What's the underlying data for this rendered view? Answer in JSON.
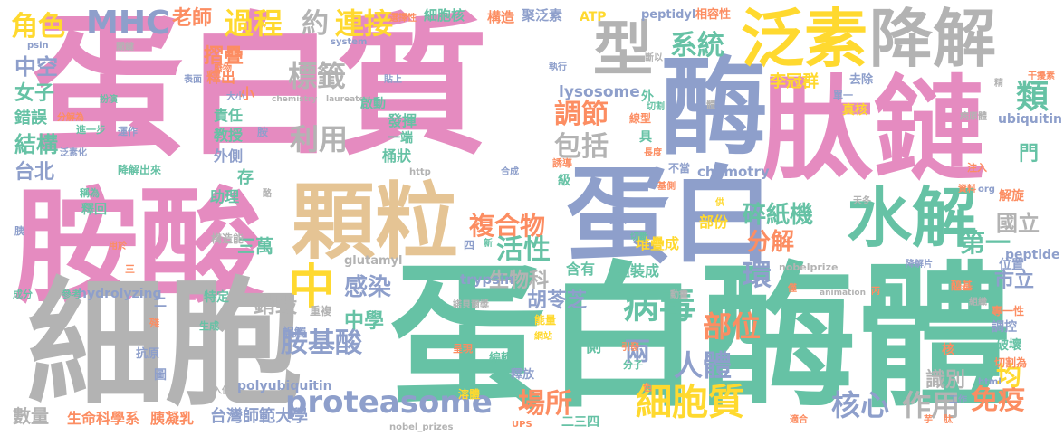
{
  "colors": {
    "pink": "#e58bc0",
    "blue": "#8e9fcb",
    "teal": "#66c2a5",
    "tan": "#e5c494",
    "yellow": "#ffd92f",
    "orange": "#fc8d62",
    "green": "#a6d854",
    "gray": "#b3b3b3"
  },
  "words": [
    {
      "text": "蛋白質",
      "color": "pink"
    },
    {
      "text": "蛋白酶體",
      "color": "teal"
    },
    {
      "text": "胺酸",
      "color": "pink"
    },
    {
      "text": "細胞",
      "color": "gray"
    },
    {
      "text": "肽鏈",
      "color": "pink"
    },
    {
      "text": "蛋白",
      "color": "blue"
    },
    {
      "text": "顆粒",
      "color": "tan"
    },
    {
      "text": "酶",
      "color": "blue"
    },
    {
      "text": "泛素",
      "color": "yellow"
    },
    {
      "text": "降解",
      "color": "gray"
    },
    {
      "text": "水解",
      "color": "teal"
    },
    {
      "text": "型",
      "color": "gray"
    },
    {
      "text": "MHC",
      "color": "blue"
    },
    {
      "text": "過程",
      "color": "yellow"
    },
    {
      "text": "連接",
      "color": "yellow"
    },
    {
      "text": "約",
      "color": "gray"
    },
    {
      "text": "系統",
      "color": "teal"
    },
    {
      "text": "老師",
      "color": "orange"
    },
    {
      "text": "角色",
      "color": "yellow"
    },
    {
      "text": "中空",
      "color": "blue"
    },
    {
      "text": "女子",
      "color": "teal"
    },
    {
      "text": "結構",
      "color": "teal"
    },
    {
      "text": "台北",
      "color": "blue"
    },
    {
      "text": "錯誤",
      "color": "teal"
    },
    {
      "text": "摺疊",
      "color": "orange"
    },
    {
      "text": "標籤",
      "color": "gray"
    },
    {
      "text": "利用",
      "color": "gray"
    },
    {
      "text": "調節",
      "color": "orange"
    },
    {
      "text": "包括",
      "color": "gray"
    },
    {
      "text": "複合物",
      "color": "orange"
    },
    {
      "text": "活性",
      "color": "teal"
    },
    {
      "text": "分解",
      "color": "orange"
    },
    {
      "text": "碎紙機",
      "color": "teal"
    },
    {
      "text": "第一",
      "color": "teal"
    },
    {
      "text": "國立",
      "color": "gray"
    },
    {
      "text": "市立",
      "color": "blue"
    },
    {
      "text": "中",
      "color": "yellow"
    },
    {
      "text": "感染",
      "color": "blue"
    },
    {
      "text": "胺基酸",
      "color": "blue"
    },
    {
      "text": "環",
      "color": "blue"
    },
    {
      "text": "病毒",
      "color": "teal"
    },
    {
      "text": "部位",
      "color": "orange"
    },
    {
      "text": "人體",
      "color": "blue"
    },
    {
      "text": "proteasome",
      "color": "blue"
    },
    {
      "text": "場所",
      "color": "orange"
    },
    {
      "text": "細胞質",
      "color": "yellow"
    },
    {
      "text": "核心",
      "color": "blue"
    },
    {
      "text": "作用",
      "color": "gray"
    },
    {
      "text": "免疫",
      "color": "orange"
    },
    {
      "text": "均",
      "color": "yellow"
    },
    {
      "text": "中學",
      "color": "teal"
    },
    {
      "text": "兩",
      "color": "blue"
    },
    {
      "text": "生物科",
      "color": "gray"
    },
    {
      "text": "胡苓芝",
      "color": "blue"
    },
    {
      "text": "銷毀",
      "color": "gray"
    },
    {
      "text": "三萬",
      "color": "teal"
    },
    {
      "text": "識別",
      "color": "gray"
    },
    {
      "text": "台灣師範大學",
      "color": "blue"
    },
    {
      "text": "生命科學系",
      "color": "orange"
    },
    {
      "text": "胰凝乳",
      "color": "orange"
    },
    {
      "text": "數量",
      "color": "gray"
    },
    {
      "text": "李冠群",
      "color": "yellow"
    },
    {
      "text": "lysosome",
      "color": "blue"
    },
    {
      "text": "ubiquitin",
      "color": "blue"
    },
    {
      "text": "chymotry",
      "color": "blue"
    },
    {
      "text": "trypsin",
      "color": "blue"
    },
    {
      "text": "polyubiquitin",
      "color": "blue"
    },
    {
      "text": "hydrolyzing",
      "color": "blue"
    },
    {
      "text": "glutamyl",
      "color": "gray"
    },
    {
      "text": "peptidyl",
      "color": "blue"
    },
    {
      "text": "peptide",
      "color": "blue"
    },
    {
      "text": "ATP",
      "color": "yellow"
    },
    {
      "text": "nobelprize",
      "color": "gray"
    },
    {
      "text": "nobel_prizes",
      "color": "gray"
    },
    {
      "text": "chemistry",
      "color": "gray"
    },
    {
      "text": "laureates",
      "color": "gray"
    },
    {
      "text": "system",
      "color": "blue"
    },
    {
      "text": "psin",
      "color": "blue"
    },
    {
      "text": "html",
      "color": "blue"
    },
    {
      "text": "http",
      "color": "gray"
    },
    {
      "text": "org",
      "color": "blue"
    },
    {
      "text": "animation",
      "color": "gray"
    },
    {
      "text": "UPS",
      "color": "orange"
    },
    {
      "text": "細胞核",
      "color": "teal"
    },
    {
      "text": "構造",
      "color": "orange"
    },
    {
      "text": "聚泛素",
      "color": "blue"
    },
    {
      "text": "相容性",
      "color": "orange"
    },
    {
      "text": "選擇性",
      "color": "orange"
    },
    {
      "text": "關鍵",
      "color": "gray"
    },
    {
      "text": "廢物",
      "color": "orange"
    },
    {
      "text": "釋出",
      "color": "orange"
    },
    {
      "text": "表面",
      "color": "blue"
    },
    {
      "text": "扮演",
      "color": "teal"
    },
    {
      "text": "小",
      "color": "orange"
    },
    {
      "text": "大小",
      "color": "blue"
    },
    {
      "text": "責任",
      "color": "teal"
    },
    {
      "text": "教授",
      "color": "teal"
    },
    {
      "text": "外側",
      "color": "blue"
    },
    {
      "text": "助理",
      "color": "teal"
    },
    {
      "text": "存",
      "color": "teal"
    },
    {
      "text": "進一步",
      "color": "teal"
    },
    {
      "text": "運作",
      "color": "blue"
    },
    {
      "text": "泛素化",
      "color": "blue"
    },
    {
      "text": "分解為",
      "color": "orange"
    },
    {
      "text": "降解出來",
      "color": "teal"
    },
    {
      "text": "稱為",
      "color": "teal"
    },
    {
      "text": "釋回",
      "color": "teal"
    },
    {
      "text": "胰",
      "color": "blue"
    },
    {
      "text": "用於",
      "color": "orange"
    },
    {
      "text": "成分",
      "color": "teal"
    },
    {
      "text": "參考",
      "color": "teal"
    },
    {
      "text": "二",
      "color": "blue"
    },
    {
      "text": "殘",
      "color": "orange"
    },
    {
      "text": "抗原",
      "color": "blue"
    },
    {
      "text": "圖",
      "color": "blue"
    },
    {
      "text": "入侵",
      "color": "gray"
    },
    {
      "text": "特定",
      "color": "teal"
    },
    {
      "text": "構造能",
      "color": "gray"
    },
    {
      "text": "生成",
      "color": "teal"
    },
    {
      "text": "誤觸",
      "color": "blue"
    },
    {
      "text": "重複",
      "color": "gray"
    },
    {
      "text": "編輯",
      "color": "teal"
    },
    {
      "text": "釋放",
      "color": "blue"
    },
    {
      "text": "呈現",
      "color": "orange"
    },
    {
      "text": "諾貝爾獎",
      "color": "gray"
    },
    {
      "text": "能量",
      "color": "yellow"
    },
    {
      "text": "網站",
      "color": "yellow"
    },
    {
      "text": "含有",
      "color": "teal"
    },
    {
      "text": "組裝成",
      "color": "teal"
    },
    {
      "text": "堆疊成",
      "color": "yellow"
    },
    {
      "text": "部份",
      "color": "yellow"
    },
    {
      "text": "天冬",
      "color": "gray"
    },
    {
      "text": "基側",
      "color": "orange"
    },
    {
      "text": "參與",
      "color": "blue"
    },
    {
      "text": "合成",
      "color": "blue"
    },
    {
      "text": "切斷",
      "color": "teal"
    },
    {
      "text": "引發",
      "color": "orange"
    },
    {
      "text": "分子",
      "color": "teal"
    },
    {
      "text": "工作",
      "color": "blue"
    },
    {
      "text": "適合",
      "color": "orange"
    },
    {
      "text": "降解片",
      "color": "blue"
    },
    {
      "text": "專一性",
      "color": "orange"
    },
    {
      "text": "調控",
      "color": "blue"
    },
    {
      "text": "破壞",
      "color": "teal"
    },
    {
      "text": "切割為",
      "color": "orange"
    },
    {
      "text": "醯基",
      "color": "orange"
    },
    {
      "text": "資料",
      "color": "orange"
    },
    {
      "text": "解旋",
      "color": "orange"
    },
    {
      "text": "位置",
      "color": "blue"
    },
    {
      "text": "注入",
      "color": "orange"
    },
    {
      "text": "病原體",
      "color": "gray"
    },
    {
      "text": "真核",
      "color": "yellow"
    },
    {
      "text": "單一",
      "color": "blue"
    },
    {
      "text": "去除",
      "color": "blue"
    },
    {
      "text": "斷以",
      "color": "gray"
    },
    {
      "text": "執行",
      "color": "blue"
    },
    {
      "text": "貼上",
      "color": "blue"
    },
    {
      "text": "啟動",
      "color": "teal"
    },
    {
      "text": "發揮",
      "color": "teal"
    },
    {
      "text": "一端",
      "color": "teal"
    },
    {
      "text": "桶狀",
      "color": "teal"
    },
    {
      "text": "切割",
      "color": "teal"
    },
    {
      "text": "線型",
      "color": "orange"
    },
    {
      "text": "誘導",
      "color": "orange"
    },
    {
      "text": "級",
      "color": "teal"
    },
    {
      "text": "不當",
      "color": "blue"
    },
    {
      "text": "長度",
      "color": "orange"
    },
    {
      "text": "外",
      "color": "teal"
    },
    {
      "text": "具",
      "color": "teal"
    },
    {
      "text": "類",
      "color": "teal"
    },
    {
      "text": "門",
      "color": "teal"
    },
    {
      "text": "新",
      "color": "teal"
    },
    {
      "text": "四",
      "color": "blue"
    },
    {
      "text": "側",
      "color": "teal"
    },
    {
      "text": "核",
      "color": "orange"
    },
    {
      "text": "肽",
      "color": "orange"
    },
    {
      "text": "二三四",
      "color": "teal"
    },
    {
      "text": "溶體",
      "color": "yellow"
    },
    {
      "text": "胺",
      "color": "blue"
    },
    {
      "text": "酪",
      "color": "gray"
    },
    {
      "text": "整",
      "color": "teal"
    },
    {
      "text": "供",
      "color": "yellow"
    },
    {
      "text": "僅",
      "color": "orange"
    },
    {
      "text": "色",
      "color": "orange"
    },
    {
      "text": "精",
      "color": "gray"
    },
    {
      "text": "丙",
      "color": "orange"
    },
    {
      "text": "組織",
      "color": "gray"
    },
    {
      "text": "芋",
      "color": "orange"
    },
    {
      "text": "干擾素",
      "color": "orange"
    },
    {
      "text": "三",
      "color": "orange"
    },
    {
      "text": "動畫",
      "color": "gray"
    },
    {
      "text": "體",
      "color": "gray"
    }
  ]
}
